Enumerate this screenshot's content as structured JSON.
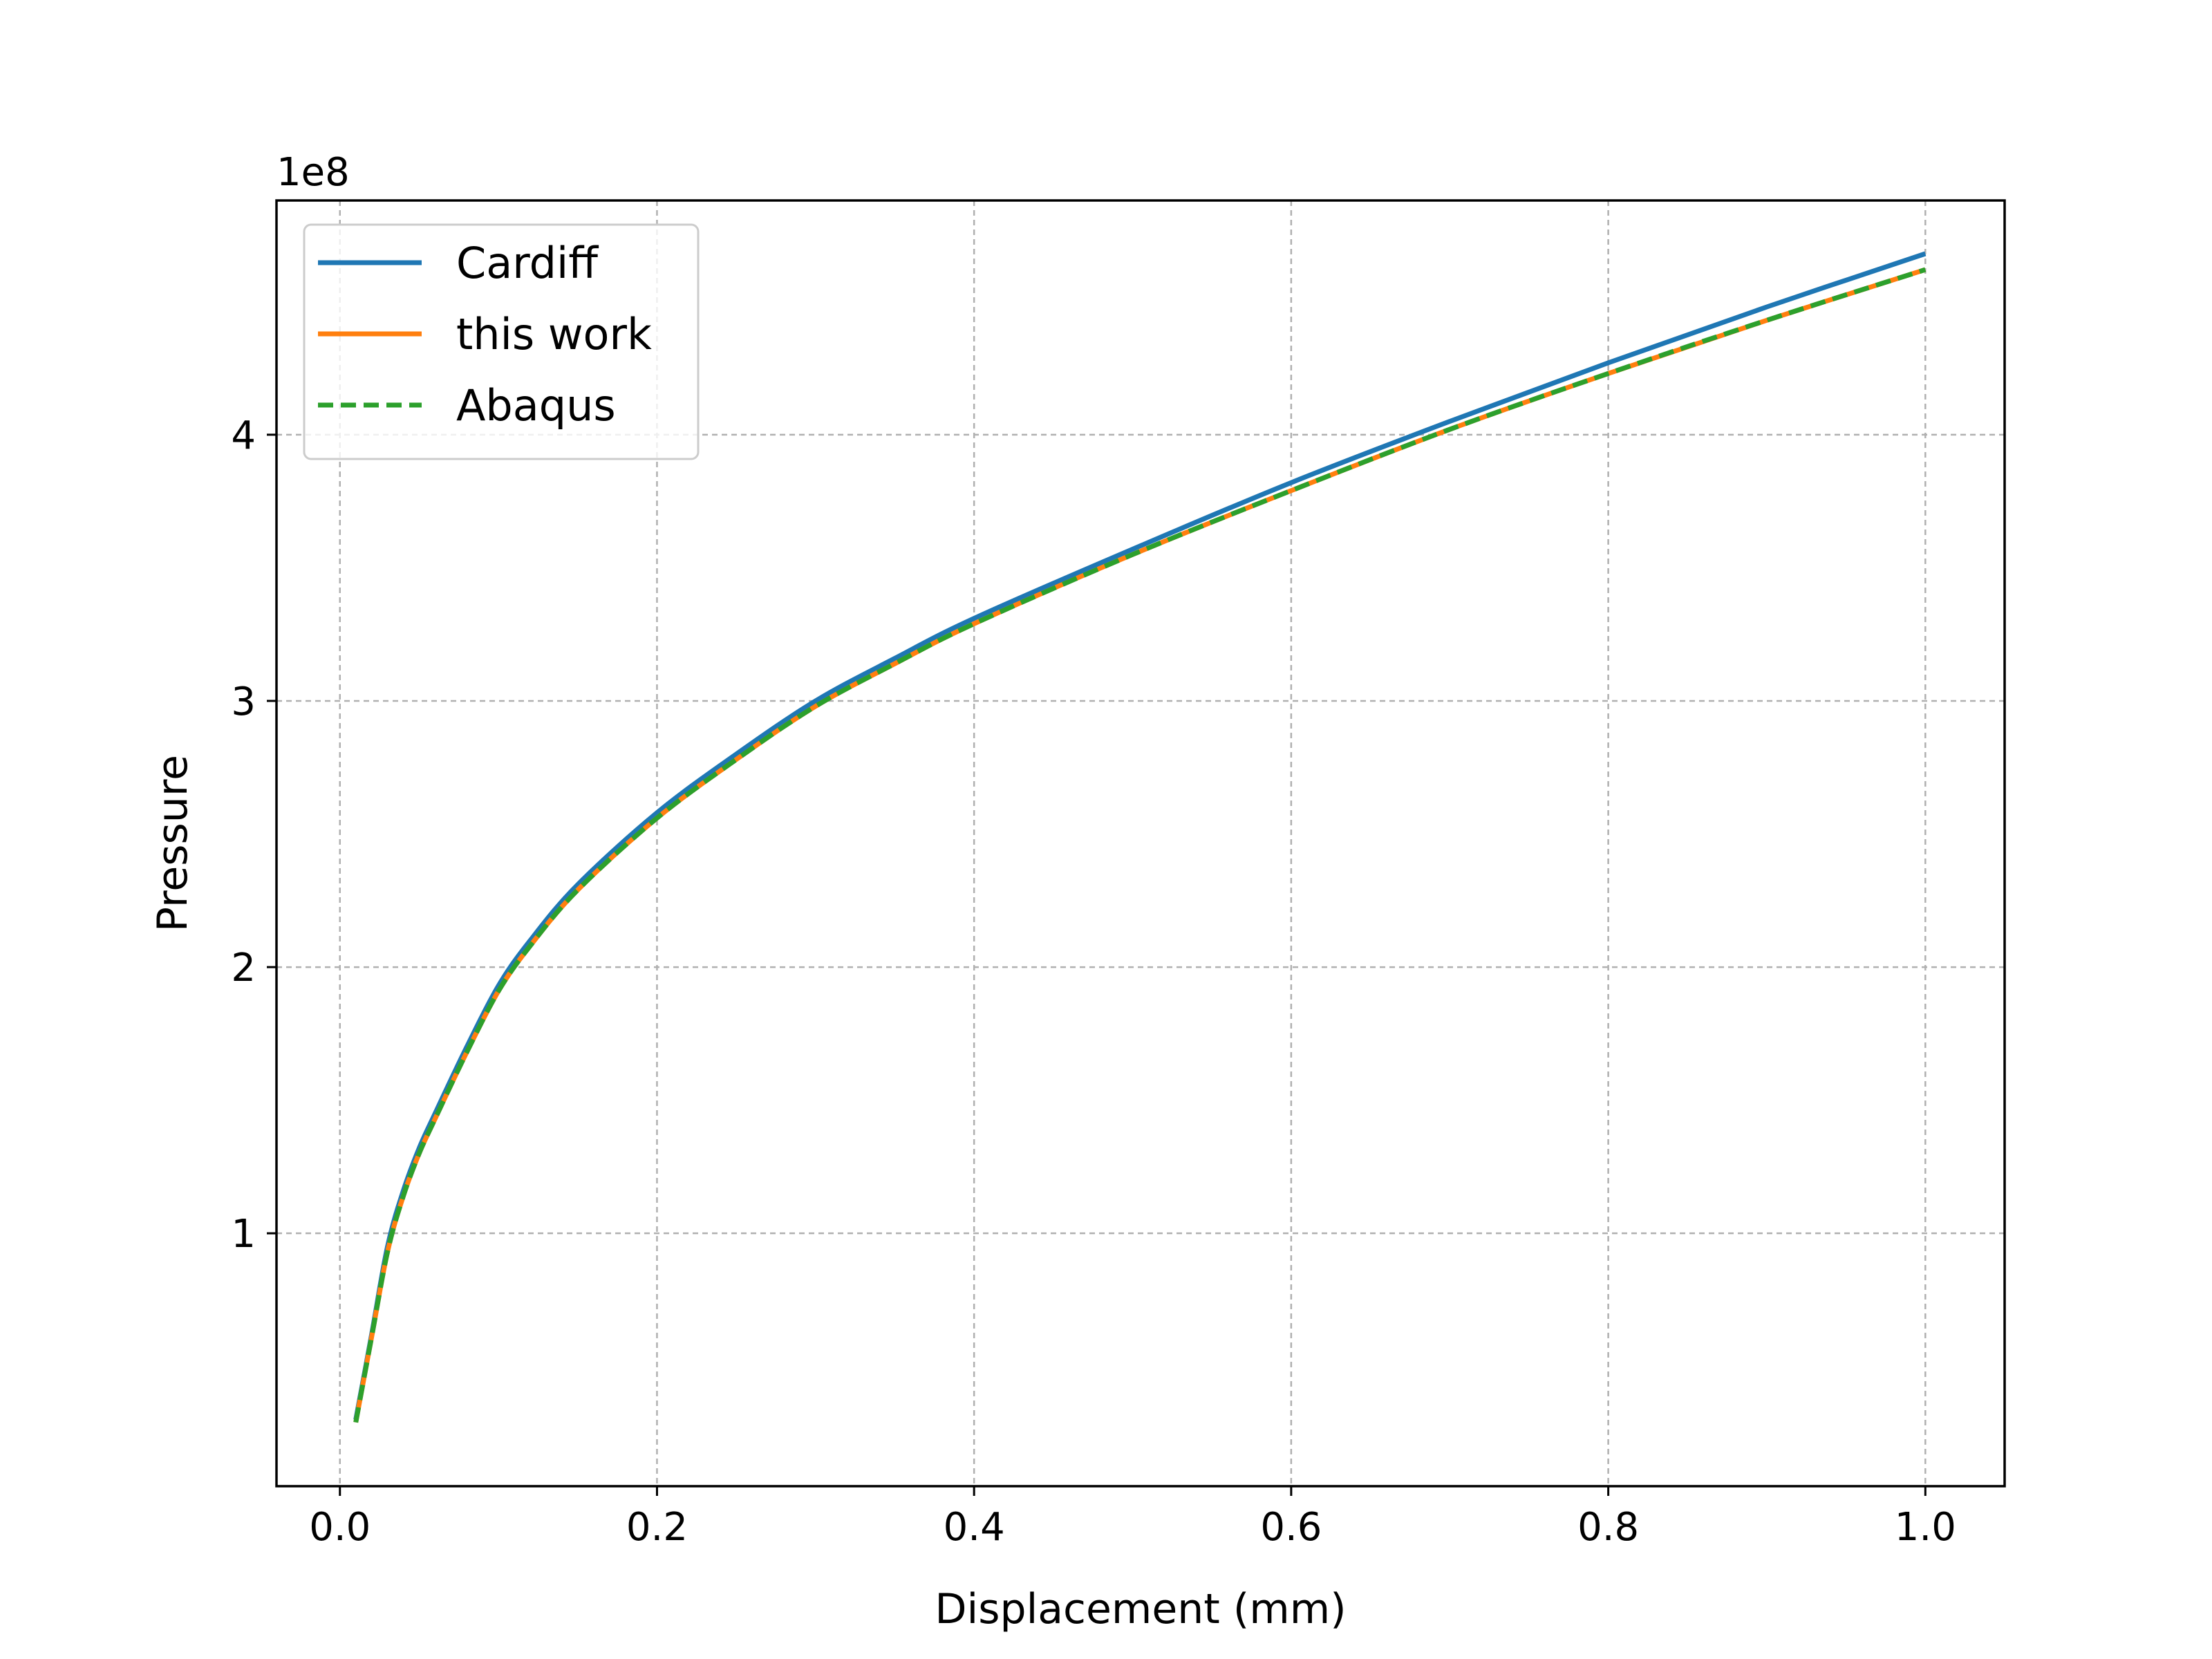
{
  "chart_data": {
    "type": "line",
    "xlabel": "Displacement (mm)",
    "ylabel": "Pressure",
    "y_offset_label": "1e8",
    "xlim": [
      -0.04,
      1.05
    ],
    "ylim": [
      0.05,
      4.88
    ],
    "y_scale": 100000000,
    "grid": true,
    "legend_position": "upper-left",
    "x_ticks": [
      0.0,
      0.2,
      0.4,
      0.6,
      0.8,
      1.0
    ],
    "x_tick_labels": [
      "0.0",
      "0.2",
      "0.4",
      "0.6",
      "0.8",
      "1.0"
    ],
    "y_ticks": [
      1,
      2,
      3,
      4
    ],
    "y_tick_labels": [
      "1",
      "2",
      "3",
      "4"
    ],
    "x": [
      0.01,
      0.02,
      0.03,
      0.04,
      0.05,
      0.06,
      0.08,
      0.1,
      0.12,
      0.15,
      0.2,
      0.25,
      0.3,
      0.35,
      0.4,
      0.5,
      0.6,
      0.7,
      0.8,
      0.9,
      1.0
    ],
    "series": [
      {
        "name": "Cardiff",
        "color": "#1f77b4",
        "style": "solid",
        "values": [
          0.3,
          0.62,
          0.95,
          1.16,
          1.32,
          1.45,
          1.7,
          1.93,
          2.1,
          2.31,
          2.58,
          2.8,
          3.0,
          3.16,
          3.31,
          3.57,
          3.82,
          4.05,
          4.27,
          4.48,
          4.68
        ]
      },
      {
        "name": "this work",
        "color": "#ff7f0e",
        "style": "solid",
        "values": [
          0.29,
          0.61,
          0.93,
          1.14,
          1.3,
          1.43,
          1.68,
          1.91,
          2.08,
          2.29,
          2.56,
          2.78,
          2.98,
          3.14,
          3.29,
          3.55,
          3.79,
          4.02,
          4.23,
          4.43,
          4.62
        ]
      },
      {
        "name": "Abaqus",
        "color": "#2ca02c",
        "style": "dashed",
        "values": [
          0.29,
          0.61,
          0.93,
          1.14,
          1.3,
          1.43,
          1.68,
          1.91,
          2.08,
          2.29,
          2.56,
          2.78,
          2.98,
          3.14,
          3.29,
          3.55,
          3.79,
          4.02,
          4.23,
          4.43,
          4.62
        ]
      }
    ]
  }
}
